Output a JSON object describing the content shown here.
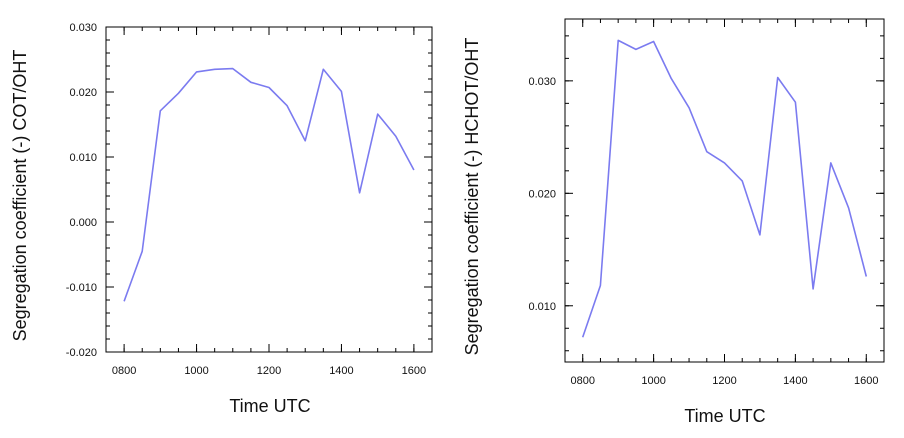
{
  "chart_data": [
    {
      "type": "line",
      "title": "",
      "xlabel": "Time UTC",
      "ylabel": "Segregation coefficient (-) COT/OHT",
      "xlim": [
        750,
        1650
      ],
      "ylim": [
        -0.02,
        0.03
      ],
      "xticks": [
        800,
        1000,
        1200,
        1400,
        1600
      ],
      "xtick_labels": [
        "0800",
        "1000",
        "1200",
        "1400",
        "1600"
      ],
      "yticks": [
        -0.02,
        -0.01,
        0.0,
        0.01,
        0.02,
        0.03
      ],
      "ytick_labels": [
        "-0.020",
        "-0.010",
        "0.000",
        "0.010",
        "0.020",
        "0.030"
      ],
      "grid": false,
      "line_color": "#7b7bf0",
      "series": [
        {
          "x": [
            800,
            850,
            900,
            950,
            1000,
            1050,
            1100,
            1150,
            1200,
            1250,
            1300,
            1350,
            1400,
            1450,
            1500,
            1550,
            1600
          ],
          "y": [
            -0.0122,
            -0.0045,
            0.0171,
            0.0198,
            0.0231,
            0.0235,
            0.0236,
            0.0215,
            0.0207,
            0.0179,
            0.0125,
            0.0235,
            0.0201,
            0.0045,
            0.0166,
            0.0132,
            0.008
          ]
        }
      ]
    },
    {
      "type": "line",
      "title": "",
      "xlabel": "Time UTC",
      "ylabel": "Segregation coefficient (-) HCHOT/OHT",
      "xlim": [
        750,
        1650
      ],
      "ylim": [
        0.005,
        0.0355
      ],
      "xticks": [
        800,
        1000,
        1200,
        1400,
        1600
      ],
      "xtick_labels": [
        "0800",
        "1000",
        "1200",
        "1400",
        "1600"
      ],
      "yticks": [
        0.01,
        0.02,
        0.03
      ],
      "ytick_labels": [
        "0.010",
        "0.020",
        "0.030"
      ],
      "grid": false,
      "line_color": "#7b7bf0",
      "series": [
        {
          "x": [
            800,
            850,
            900,
            950,
            1000,
            1050,
            1100,
            1150,
            1200,
            1250,
            1300,
            1350,
            1400,
            1450,
            1500,
            1550,
            1600
          ],
          "y": [
            0.0072,
            0.0118,
            0.0336,
            0.0328,
            0.0335,
            0.0302,
            0.0276,
            0.0237,
            0.0227,
            0.0211,
            0.0163,
            0.0303,
            0.0281,
            0.0115,
            0.0227,
            0.0187,
            0.0126
          ]
        }
      ]
    }
  ]
}
